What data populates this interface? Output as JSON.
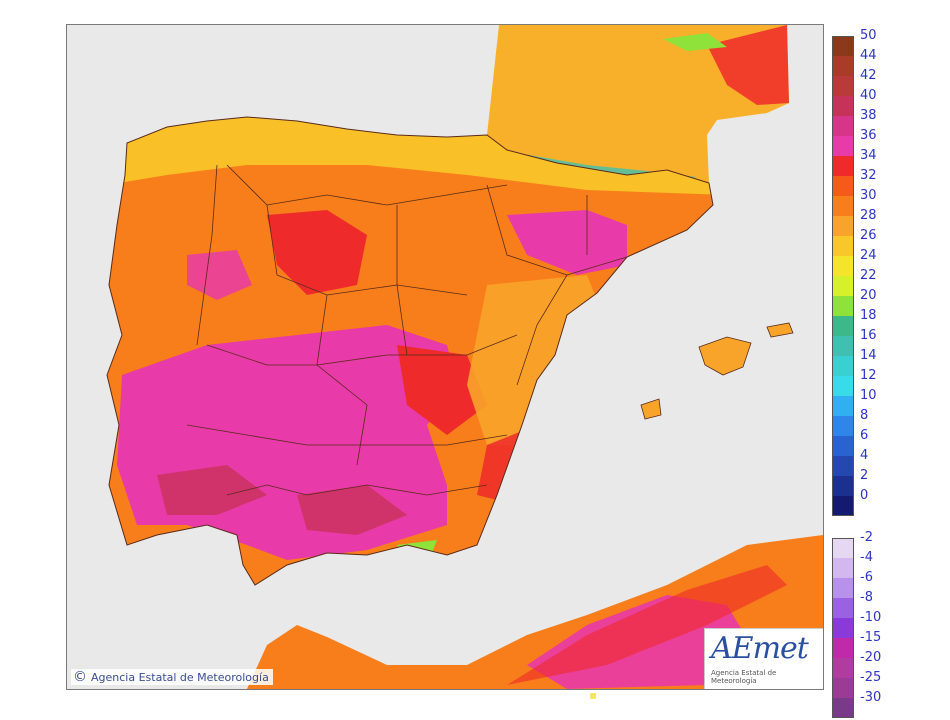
{
  "map": {
    "credit_text": "Agencia Estatal de Meteorología",
    "copyright_symbol": "©",
    "logo_mark": "AEmet",
    "logo_subtitle": "Agencia Estatal de Meteorología",
    "colors": {
      "sea": "#e9e9e9",
      "country_border": "#5a2a1a",
      "base_land": "#f58a2a"
    }
  },
  "legend": {
    "positive": [
      {
        "label": "50",
        "color": "#8a3a1a"
      },
      {
        "label": "44",
        "color": "#a83c28"
      },
      {
        "label": "42",
        "color": "#b83a3a"
      },
      {
        "label": "40",
        "color": "#c8325a"
      },
      {
        "label": "38",
        "color": "#d8358a"
      },
      {
        "label": "36",
        "color": "#e83aa8"
      },
      {
        "label": "34",
        "color": "#ef2a2a"
      },
      {
        "label": "32",
        "color": "#f65a1a"
      },
      {
        "label": "30",
        "color": "#f77e1a"
      },
      {
        "label": "28",
        "color": "#f8a42a"
      },
      {
        "label": "26",
        "color": "#f8c82a"
      },
      {
        "label": "24",
        "color": "#f5e52a"
      },
      {
        "label": "22",
        "color": "#d6f02a"
      },
      {
        "label": "20",
        "color": "#8ee23a"
      },
      {
        "label": "18",
        "color": "#3cb88a"
      },
      {
        "label": "16",
        "color": "#40c0b0"
      },
      {
        "label": "14",
        "color": "#38d0d0"
      },
      {
        "label": "12",
        "color": "#38dce8"
      },
      {
        "label": "10",
        "color": "#30b0f0"
      },
      {
        "label": "8",
        "color": "#2f86e8"
      },
      {
        "label": "6",
        "color": "#2a62d0"
      },
      {
        "label": "4",
        "color": "#2448b0"
      },
      {
        "label": "2",
        "color": "#1c3090"
      },
      {
        "label": "0",
        "color": "#141a70"
      }
    ],
    "negative": [
      {
        "label": "-2",
        "color": "#e6d8f2"
      },
      {
        "label": "-4",
        "color": "#d2b8ee"
      },
      {
        "label": "-6",
        "color": "#b892ea"
      },
      {
        "label": "-8",
        "color": "#9a62e2"
      },
      {
        "label": "-10",
        "color": "#8a3ad8"
      },
      {
        "label": "-15",
        "color": "#c02aa8"
      },
      {
        "label": "-20",
        "color": "#b03ca0"
      },
      {
        "label": "-25",
        "color": "#9a3c96"
      },
      {
        "label": "-30",
        "color": "#7a3a8a"
      }
    ]
  }
}
